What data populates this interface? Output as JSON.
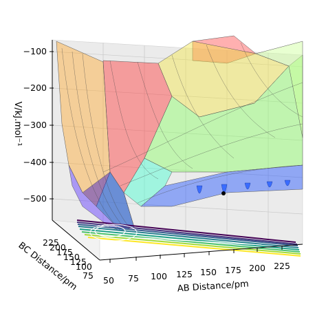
{
  "chart_data": {
    "type": "surface3d",
    "title": "",
    "xlabel": "AB Distance/pm",
    "ylabel": "BC Distance/pm",
    "zlabel": "V/kJ.mol⁻¹",
    "x_ticks": [
      "50",
      "75",
      "100",
      "125",
      "150",
      "175",
      "200",
      "225"
    ],
    "y_ticks": [
      "75",
      "100",
      "125",
      "150",
      "175",
      "200",
      "225"
    ],
    "z_ticks": [
      "−100",
      "−200",
      "−300",
      "−400",
      "−500"
    ],
    "x_range": [
      50,
      240
    ],
    "y_range": [
      60,
      240
    ],
    "z_range": [
      -560,
      -80
    ],
    "surface_colormap": "jet",
    "contour_colormap": "viridis",
    "grid": true,
    "legend": "none",
    "marker": {
      "x": 180,
      "y": 85,
      "z": -500,
      "color": "#000000"
    },
    "description_series": [
      {
        "name": "",
        "x": [
          60,
          70,
          80,
          90,
          110,
          150,
          200,
          240
        ],
        "z": [
          -110,
          -300,
          -470,
          -520,
          -480,
          -440,
          -420,
          -415
        ]
      }
    ]
  }
}
